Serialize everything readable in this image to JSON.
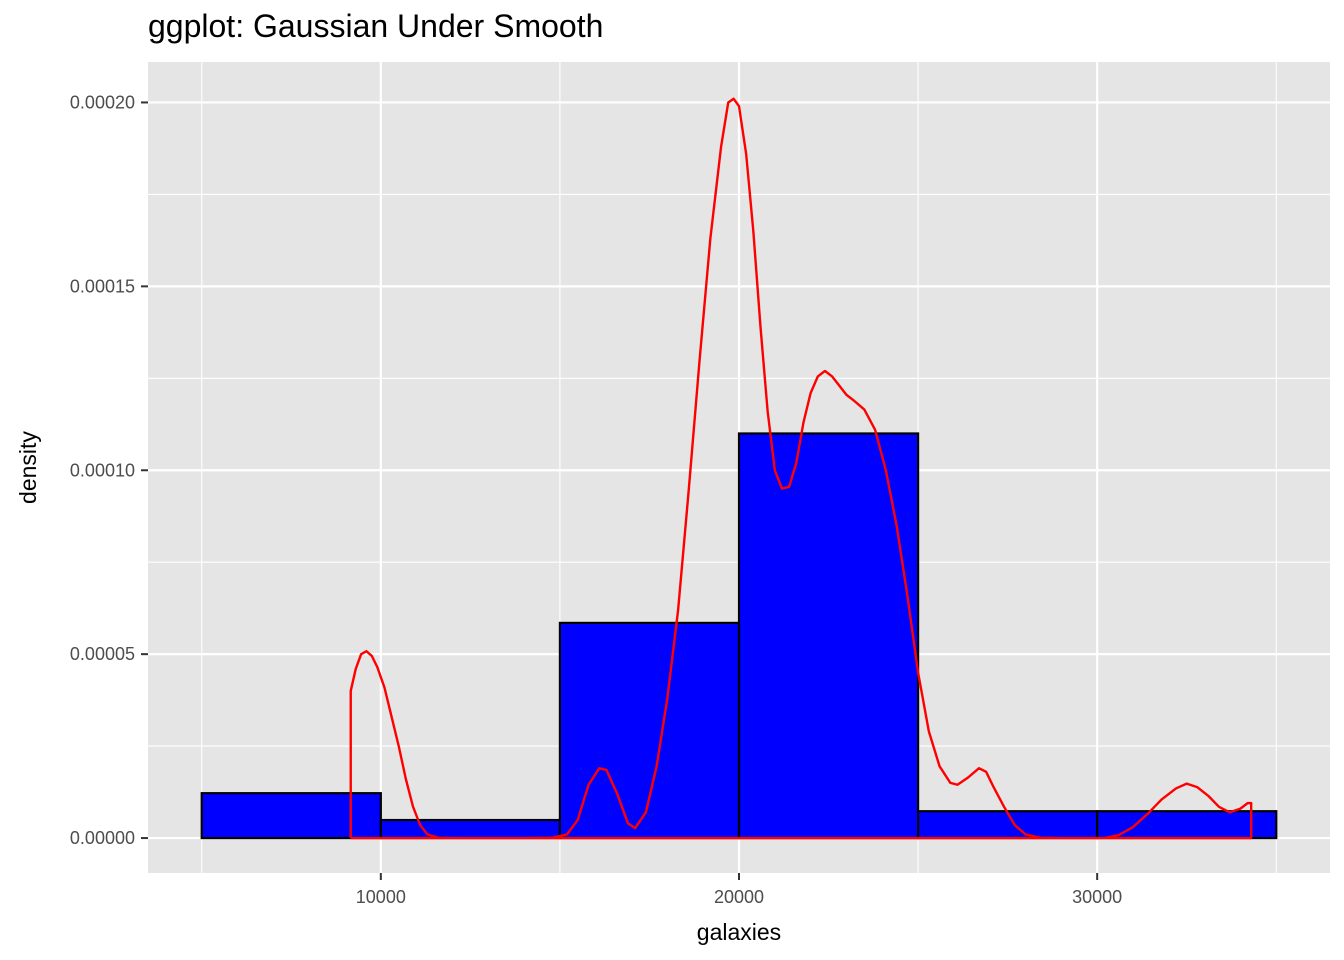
{
  "chart_data": {
    "type": "histogram",
    "title": "ggplot: Gaussian Under Smooth",
    "xlabel": "galaxies",
    "ylabel": "density",
    "xlim": [
      3500,
      36500
    ],
    "ylim": [
      -9.5e-06,
      0.000211
    ],
    "x_ticks": [
      {
        "value": 10000,
        "label": "10000"
      },
      {
        "value": 20000,
        "label": "20000"
      },
      {
        "value": 30000,
        "label": "30000"
      }
    ],
    "x_minor": [
      5000,
      15000,
      25000,
      35000
    ],
    "y_ticks": [
      {
        "value": 0,
        "label": "0.00000"
      },
      {
        "value": 5e-05,
        "label": "0.00005"
      },
      {
        "value": 0.0001,
        "label": "0.00010"
      },
      {
        "value": 0.00015,
        "label": "0.00015"
      },
      {
        "value": 0.0002,
        "label": "0.00020"
      }
    ],
    "y_minor": [
      2.5e-05,
      7.5e-05,
      0.000125,
      0.000175
    ],
    "grid": true,
    "panel_background": "#e5e5e5",
    "grid_color": "#ffffff",
    "bar_fill": "#0000ff",
    "bar_outline": "#000000",
    "line_color": "#ff0000",
    "bins": [
      {
        "x0": 5000,
        "x1": 10000,
        "density": 1.22e-05
      },
      {
        "x0": 10000,
        "x1": 15000,
        "density": 4.9e-06
      },
      {
        "x0": 15000,
        "x1": 20000,
        "density": 5.85e-05
      },
      {
        "x0": 20000,
        "x1": 25000,
        "density": 0.00011
      },
      {
        "x0": 25000,
        "x1": 30000,
        "density": 7.3e-06
      },
      {
        "x0": 30000,
        "x1": 35000,
        "density": 7.3e-06
      }
    ],
    "density_curve": {
      "name": "",
      "points": [
        [
          9160,
          0
        ],
        [
          9160,
          4e-05
        ],
        [
          9300,
          4.6e-05
        ],
        [
          9450,
          5e-05
        ],
        [
          9600,
          5.08e-05
        ],
        [
          9750,
          4.95e-05
        ],
        [
          9900,
          4.65e-05
        ],
        [
          10100,
          4.1e-05
        ],
        [
          10300,
          3.3e-05
        ],
        [
          10500,
          2.5e-05
        ],
        [
          10700,
          1.6e-05
        ],
        [
          10900,
          8.5e-06
        ],
        [
          11100,
          3.5e-06
        ],
        [
          11300,
          1e-06
        ],
        [
          11600,
          1e-07
        ],
        [
          12000,
          0
        ],
        [
          14000,
          0
        ],
        [
          14800,
          1e-07
        ],
        [
          15200,
          1e-06
        ],
        [
          15500,
          5e-06
        ],
        [
          15800,
          1.45e-05
        ],
        [
          16100,
          1.9e-05
        ],
        [
          16300,
          1.85e-05
        ],
        [
          16600,
          1.2e-05
        ],
        [
          16900,
          4e-06
        ],
        [
          17100,
          2.7e-06
        ],
        [
          17400,
          7e-06
        ],
        [
          17700,
          1.95e-05
        ],
        [
          18000,
          3.8e-05
        ],
        [
          18300,
          6.2e-05
        ],
        [
          18600,
          9.5e-05
        ],
        [
          18900,
          0.00013
        ],
        [
          19200,
          0.000163
        ],
        [
          19500,
          0.000188
        ],
        [
          19700,
          0.0002
        ],
        [
          19850,
          0.000201
        ],
        [
          20000,
          0.000199
        ],
        [
          20200,
          0.000186
        ],
        [
          20400,
          0.000165
        ],
        [
          20600,
          0.000139
        ],
        [
          20800,
          0.000116
        ],
        [
          21000,
          0.0001
        ],
        [
          21200,
          9.5e-05
        ],
        [
          21400,
          9.55e-05
        ],
        [
          21600,
          0.000102
        ],
        [
          21800,
          0.000113
        ],
        [
          22000,
          0.000121
        ],
        [
          22200,
          0.0001255
        ],
        [
          22400,
          0.000127
        ],
        [
          22600,
          0.0001255
        ],
        [
          22800,
          0.000123
        ],
        [
          23000,
          0.0001205
        ],
        [
          23200,
          0.000119
        ],
        [
          23500,
          0.0001165
        ],
        [
          23800,
          0.000111
        ],
        [
          24100,
          0.0001
        ],
        [
          24400,
          8.5e-05
        ],
        [
          24700,
          6.6e-05
        ],
        [
          25000,
          4.5e-05
        ],
        [
          25300,
          2.9e-05
        ],
        [
          25600,
          1.95e-05
        ],
        [
          25900,
          1.5e-05
        ],
        [
          26100,
          1.45e-05
        ],
        [
          26400,
          1.65e-05
        ],
        [
          26700,
          1.9e-05
        ],
        [
          26900,
          1.8e-05
        ],
        [
          27100,
          1.4e-05
        ],
        [
          27400,
          8.5e-06
        ],
        [
          27700,
          3.5e-06
        ],
        [
          28000,
          1e-06
        ],
        [
          28400,
          1e-07
        ],
        [
          29000,
          0
        ],
        [
          30200,
          0
        ],
        [
          30600,
          8e-07
        ],
        [
          31000,
          3e-06
        ],
        [
          31400,
          6.5e-06
        ],
        [
          31800,
          1.05e-05
        ],
        [
          32200,
          1.35e-05
        ],
        [
          32500,
          1.48e-05
        ],
        [
          32800,
          1.38e-05
        ],
        [
          33100,
          1.15e-05
        ],
        [
          33400,
          8.5e-06
        ],
        [
          33700,
          7e-06
        ],
        [
          34000,
          8e-06
        ],
        [
          34200,
          9.5e-06
        ],
        [
          34300,
          9.5e-06
        ],
        [
          34300,
          0
        ],
        [
          9160,
          0
        ]
      ]
    }
  }
}
